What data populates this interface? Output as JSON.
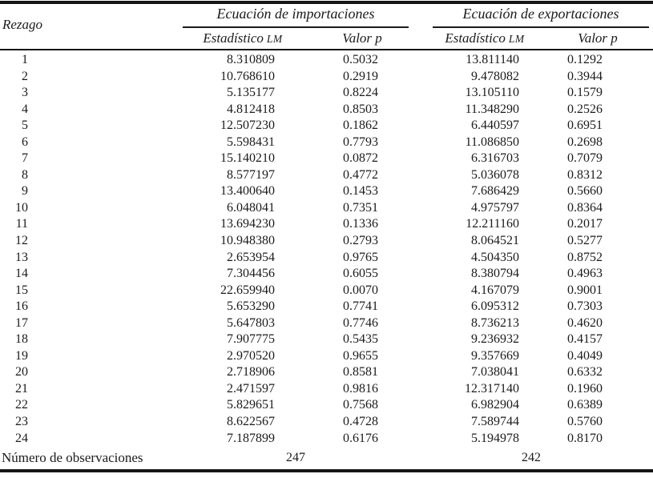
{
  "table": {
    "row_header_label": "Rezago",
    "groups": [
      {
        "label": "Ecuación de importaciones",
        "col1_main": "Estadístico",
        "col1_caps": "LM",
        "col2": "Valor p"
      },
      {
        "label": "Ecuación de exportaciones",
        "col1_main": "Estadístico",
        "col1_caps": "LM",
        "col2": "Valor p"
      }
    ],
    "rows": [
      [
        "1",
        "8.310809",
        "0.5032",
        "13.811140",
        "0.1292"
      ],
      [
        "2",
        "10.768610",
        "0.2919",
        "9.478082",
        "0.3944"
      ],
      [
        "3",
        "5.135177",
        "0.8224",
        "13.105110",
        "0.1579"
      ],
      [
        "4",
        "4.812418",
        "0.8503",
        "11.348290",
        "0.2526"
      ],
      [
        "5",
        "12.507230",
        "0.1862",
        "6.440597",
        "0.6951"
      ],
      [
        "6",
        "5.598431",
        "0.7793",
        "11.086850",
        "0.2698"
      ],
      [
        "7",
        "15.140210",
        "0.0872",
        "6.316703",
        "0.7079"
      ],
      [
        "8",
        "8.577197",
        "0.4772",
        "5.036078",
        "0.8312"
      ],
      [
        "9",
        "13.400640",
        "0.1453",
        "7.686429",
        "0.5660"
      ],
      [
        "10",
        "6.048041",
        "0.7351",
        "4.975797",
        "0.8364"
      ],
      [
        "11",
        "13.694230",
        "0.1336",
        "12.211160",
        "0.2017"
      ],
      [
        "12",
        "10.948380",
        "0.2793",
        "8.064521",
        "0.5277"
      ],
      [
        "13",
        "2.653954",
        "0.9765",
        "4.504350",
        "0.8752"
      ],
      [
        "14",
        "7.304456",
        "0.6055",
        "8.380794",
        "0.4963"
      ],
      [
        "15",
        "22.659940",
        "0.0070",
        "4.167079",
        "0.9001"
      ],
      [
        "16",
        "5.653290",
        "0.7741",
        "6.095312",
        "0.7303"
      ],
      [
        "17",
        "5.647803",
        "0.7746",
        "8.736213",
        "0.4620"
      ],
      [
        "18",
        "7.907775",
        "0.5435",
        "9.236932",
        "0.4157"
      ],
      [
        "19",
        "2.970520",
        "0.9655",
        "9.357669",
        "0.4049"
      ],
      [
        "20",
        "2.718906",
        "0.8581",
        "7.038041",
        "0.6332"
      ],
      [
        "21",
        "2.471597",
        "0.9816",
        "12.317140",
        "0.1960"
      ],
      [
        "22",
        "5.829651",
        "0.7568",
        "6.982904",
        "0.6389"
      ],
      [
        "23",
        "8.622567",
        "0.4728",
        "7.589744",
        "0.5760"
      ],
      [
        "24",
        "7.187899",
        "0.6176",
        "5.194978",
        "0.8170"
      ]
    ],
    "footer": {
      "label": "Número de observaciones",
      "import_obs": "247",
      "export_obs": "242"
    }
  }
}
